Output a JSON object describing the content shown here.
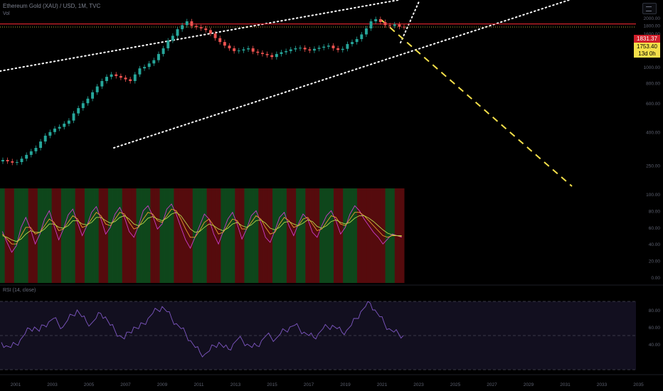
{
  "header": {
    "symbol_line": "Ethereum Gold (XAU) / USD, 1M, TVC",
    "sub_line": "Vol"
  },
  "rsi_panel": {
    "title": "RSI (14, close)"
  },
  "price_tags": {
    "resistance": "1831.37",
    "current": "1753.40",
    "countdown": "13d 0h"
  },
  "colors": {
    "background": "#000000",
    "bull_candle": "#26a69a",
    "bear_candle": "#ef5350",
    "resistance_line": "#e8252f",
    "current_dotted": "#f5e04a",
    "target_dashed": "#f5e04a",
    "channel_dotted": "#ffffff",
    "rsi_line": "#7e57c2",
    "rsi_band": "#120f1f"
  },
  "chart_data": [
    {
      "type": "candlestick",
      "title": "",
      "price_axis_labels": [
        "2000.00",
        "1800.00",
        "1600.00",
        "1400.00",
        "1200.00",
        "1000.00",
        "800.00",
        "600.00",
        "400.00",
        "250.00"
      ],
      "time_axis_labels": [
        "2001",
        "2003",
        "2005",
        "2007",
        "2009",
        "2011",
        "2013",
        "2015",
        "2017",
        "2019",
        "2021",
        "2023",
        "2025",
        "2027",
        "2029",
        "2031",
        "2033",
        "2035"
      ],
      "resistance_level": 1831.37,
      "current_price": 1753.4,
      "close_series": [
        270,
        265,
        260,
        262,
        275,
        290,
        305,
        320,
        350,
        380,
        400,
        420,
        430,
        450,
        470,
        520,
        560,
        600,
        640,
        700,
        760,
        820,
        870,
        900,
        880,
        860,
        840,
        820,
        900,
        980,
        1000,
        1050,
        1100,
        1200,
        1300,
        1450,
        1550,
        1700,
        1800,
        1900,
        1780,
        1750,
        1720,
        1680,
        1600,
        1500,
        1420,
        1350,
        1300,
        1250,
        1260,
        1280,
        1300,
        1240,
        1220,
        1200,
        1180,
        1150,
        1200,
        1230,
        1250,
        1280,
        1300,
        1310,
        1280,
        1260,
        1290,
        1310,
        1330,
        1350,
        1300,
        1270,
        1290,
        1380,
        1420,
        1480,
        1580,
        1720,
        1900,
        1960,
        1880,
        1800,
        1780,
        1820,
        1760,
        1753.4
      ],
      "grid": false
    },
    {
      "type": "line",
      "title": "",
      "series": [
        {
          "values": [
            55,
            42,
            30,
            38,
            60,
            72,
            58,
            40,
            52,
            70,
            80,
            62,
            45,
            58,
            75,
            82,
            66,
            50,
            62,
            78,
            85,
            70,
            52,
            60,
            76,
            84,
            72,
            55,
            48,
            62,
            80,
            86,
            74,
            58,
            64,
            82,
            88,
            76,
            60,
            45,
            35,
            48,
            62,
            76,
            70,
            52,
            40,
            55,
            70,
            78,
            64,
            46,
            58,
            74,
            80,
            66,
            48,
            42,
            56,
            72,
            78,
            62,
            50,
            64,
            76,
            70,
            54,
            48,
            62,
            74,
            80,
            68,
            52,
            60,
            76,
            86,
            80,
            70,
            62,
            54,
            48,
            40,
            46,
            52,
            50,
            48
          ]
        },
        {
          "values": [
            52,
            46,
            40,
            40,
            50,
            60,
            60,
            52,
            54,
            62,
            70,
            66,
            56,
            58,
            66,
            74,
            70,
            60,
            62,
            70,
            78,
            74,
            64,
            62,
            70,
            78,
            76,
            66,
            58,
            60,
            70,
            78,
            76,
            68,
            66,
            74,
            82,
            80,
            70,
            58,
            48,
            48,
            56,
            66,
            70,
            62,
            52,
            54,
            62,
            70,
            68,
            58,
            58,
            66,
            74,
            70,
            60,
            52,
            54,
            64,
            72,
            68,
            60,
            62,
            70,
            72,
            64,
            56,
            58,
            66,
            74,
            72,
            64,
            62,
            70,
            78,
            78,
            74,
            68,
            62,
            56,
            50,
            48,
            50,
            50,
            49
          ]
        },
        {
          "values": [
            50,
            48,
            45,
            43,
            46,
            52,
            56,
            54,
            54,
            58,
            64,
            64,
            60,
            59,
            62,
            68,
            68,
            64,
            63,
            66,
            72,
            72,
            68,
            65,
            67,
            72,
            74,
            70,
            64,
            62,
            65,
            71,
            73,
            70,
            68,
            71,
            76,
            78,
            74,
            66,
            58,
            54,
            55,
            60,
            64,
            62,
            58,
            56,
            59,
            64,
            66,
            62,
            60,
            63,
            68,
            69,
            65,
            59,
            57,
            60,
            66,
            67,
            64,
            62,
            65,
            69,
            67,
            61,
            59,
            62,
            67,
            69,
            66,
            64,
            66,
            71,
            74,
            74,
            71,
            67,
            62,
            57,
            53,
            51,
            50,
            50
          ]
        }
      ],
      "grid": false
    },
    {
      "type": "line",
      "title": "RSI (14, close)",
      "series": [
        {
          "values": [
            42,
            38,
            36,
            40,
            45,
            52,
            58,
            60,
            55,
            62,
            66,
            70,
            64,
            60,
            68,
            74,
            80,
            72,
            66,
            64,
            70,
            76,
            72,
            62,
            56,
            50,
            46,
            54,
            60,
            58,
            64,
            70,
            76,
            80,
            84,
            78,
            70,
            64,
            58,
            52,
            44,
            36,
            30,
            28,
            32,
            38,
            42,
            36,
            34,
            40,
            46,
            44,
            40,
            36,
            38,
            44,
            50,
            48,
            46,
            52,
            56,
            60,
            62,
            58,
            54,
            50,
            48,
            52,
            58,
            60,
            62,
            58,
            54,
            56,
            62,
            70,
            78,
            84,
            88,
            80,
            72,
            64,
            58,
            54,
            52,
            50
          ]
        }
      ],
      "overbought": 70,
      "oversold": 30,
      "grid": false
    }
  ]
}
